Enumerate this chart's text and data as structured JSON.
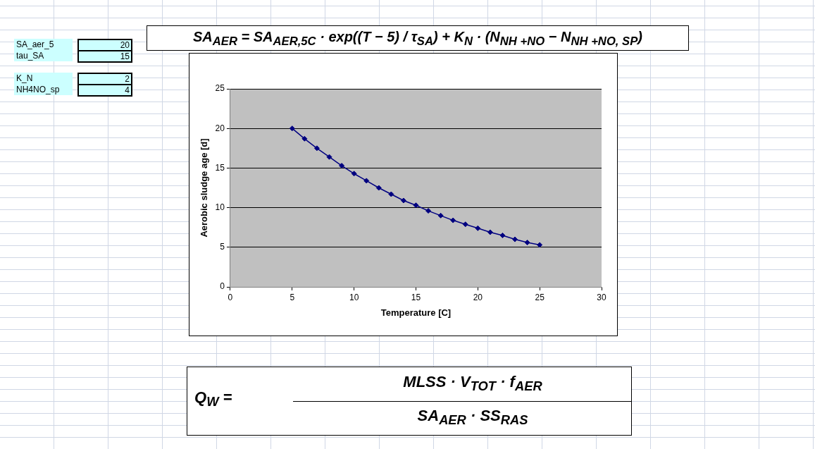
{
  "chart_data": {
    "type": "line",
    "xlabel": "Temperature [C]",
    "ylabel": "Aerobic sludge age [d]",
    "x": [
      5,
      6,
      7,
      8,
      9,
      10,
      11,
      12,
      13,
      14,
      15,
      16,
      17,
      18,
      19,
      20,
      21,
      22,
      23,
      24,
      25
    ],
    "series": [
      {
        "color": "#000080",
        "values": [
          20,
          18.7,
          17.5,
          16.4,
          15.3,
          14.3,
          13.4,
          12.5,
          11.7,
          10.9,
          10.3,
          9.6,
          9.0,
          8.4,
          7.9,
          7.4,
          6.9,
          6.5,
          6.0,
          5.6,
          5.3
        ]
      }
    ],
    "xlim": [
      0,
      30
    ],
    "xticks": [
      0,
      5,
      10,
      15,
      20,
      25,
      30
    ],
    "ylim": [
      0,
      25
    ],
    "yticks": [
      0,
      5,
      10,
      15,
      20,
      25
    ],
    "grid": "y",
    "legend": false,
    "marker": "diamond",
    "line_style": "solid",
    "annotations": [
      "SA_aer_5",
      "20",
      "tau_SA",
      "15",
      "K_N",
      "2",
      "NH4NO_sp",
      "4",
      "SA$_{AER}$ = SA$_{AER,5C}$ · exp((T − 5) / τ$_{SA}$) + K$_{N}$ · (N$_{NH +NO}$ − N$_{NH +NO, SP}$)",
      "Q$_{W}$ =",
      "MLSS · V$_{TOT}$ · f$_{AER}$",
      "SA$_{AER}$ · SS$_{RAS}$"
    ]
  }
}
